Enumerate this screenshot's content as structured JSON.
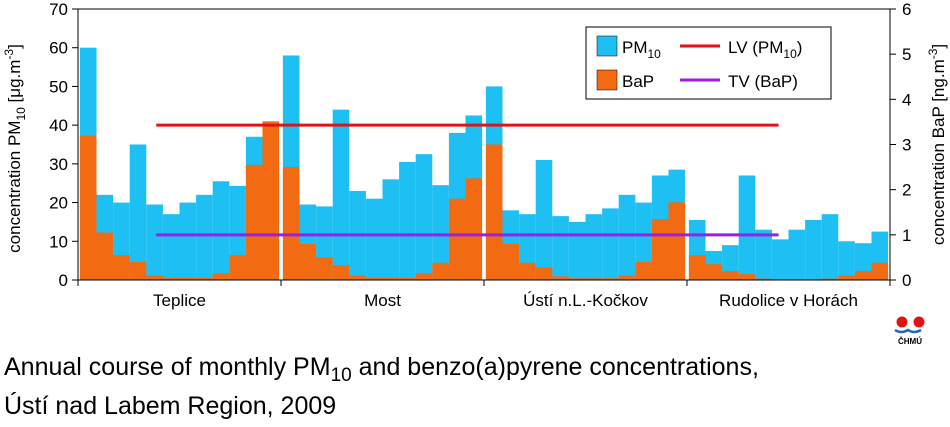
{
  "chart_data": {
    "type": "bar",
    "y_left": {
      "label_main": "concentration PM",
      "label_sub": "10",
      "label_unit": " [μg.m",
      "label_sup": "-3",
      "label_end": "]",
      "ylim": [
        0,
        70
      ],
      "ticks": [
        0,
        10,
        20,
        30,
        40,
        50,
        60,
        70
      ]
    },
    "y_right": {
      "label_main": "concentration BaP [ng.m",
      "label_sup": "-3",
      "label_end": "]",
      "ylim": [
        0,
        6
      ],
      "ticks": [
        0,
        1,
        2,
        3,
        4,
        5,
        6
      ]
    },
    "grid": false,
    "legend": {
      "position": "top-right",
      "pm10": {
        "text": "PM",
        "sub": "10",
        "color": "#1ebff2"
      },
      "bap": {
        "text": "BaP",
        "color": "#f26a12"
      },
      "lv": {
        "text": "LV (PM",
        "sub": "10",
        "end": ")",
        "color": "#e01414"
      },
      "tv": {
        "text": "TV (BaP)",
        "color": "#9a1ee6"
      }
    },
    "series_colors": {
      "pm10": "#1ebff2",
      "bap": "#f26a12"
    },
    "limits": {
      "lv_pm10": 40,
      "tv_bap_ngm3": 1
    },
    "stations": [
      {
        "name": "Teplice",
        "pm10": [
          60,
          22,
          20,
          35,
          19.5,
          17,
          20,
          22,
          25.5,
          24.3,
          37,
          41
        ],
        "bap": [
          3.2,
          1.05,
          0.55,
          0.4,
          0.1,
          0.05,
          0.05,
          0.05,
          0.15,
          0.55,
          2.55,
          3.5
        ]
      },
      {
        "name": "Most",
        "pm10": [
          58,
          19.5,
          19,
          44,
          23,
          21,
          26,
          30.5,
          32.5,
          24.5,
          38,
          42.5
        ],
        "bap": [
          2.5,
          0.8,
          0.5,
          0.33,
          0.1,
          0.05,
          0.05,
          0.05,
          0.15,
          0.38,
          1.8,
          2.25
        ]
      },
      {
        "name": "Ústí n.L.-Kočkov",
        "pm10": [
          50,
          18,
          17,
          31,
          16.5,
          15,
          17,
          18.5,
          22,
          20,
          27,
          28.5
        ],
        "bap": [
          3.0,
          0.8,
          0.38,
          0.28,
          0.08,
          0.04,
          0.04,
          0.04,
          0.1,
          0.4,
          1.35,
          1.72
        ]
      },
      {
        "name": "Rudolice v Horách",
        "pm10": [
          15.5,
          7.5,
          9,
          27,
          13,
          10.5,
          13,
          15.5,
          17,
          10,
          9.5,
          12.5
        ],
        "bap": [
          0.55,
          0.35,
          0.2,
          0.13,
          0.03,
          0.01,
          0.01,
          0.01,
          0.03,
          0.1,
          0.2,
          0.38
        ]
      }
    ]
  },
  "caption": {
    "line1_a": "Annual course of monthly PM",
    "line1_sub": "10",
    "line1_b": " and benzo(a)pyrene concentrations,",
    "line2": "Ústí nad Labem Region, 2009"
  },
  "logo": {
    "text": "ČHMÚ",
    "color_red": "#e01414",
    "color_blue": "#1e64c8"
  }
}
